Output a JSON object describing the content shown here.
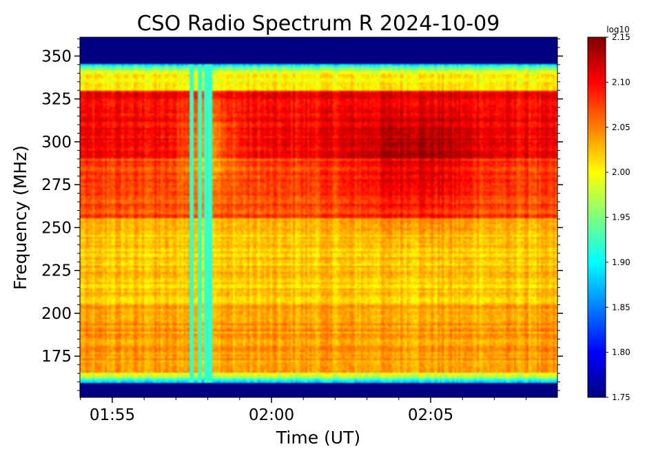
{
  "chart_data": {
    "type": "heatmap",
    "title": "CSO Radio Spectrum R 2024-10-09",
    "xlabel": "Time (UT)",
    "ylabel": "Frequency (MHz)",
    "x_range": [
      "01:53:59",
      "02:08:59"
    ],
    "x_ticks": [
      "01:55",
      "02:00",
      "02:05"
    ],
    "ylim": [
      151,
      361
    ],
    "y_ticks": [
      175,
      200,
      225,
      250,
      275,
      300,
      325,
      350
    ],
    "colorbar": {
      "label": "log10",
      "min": 1.75,
      "max": 2.15,
      "colormap": "jet",
      "ticks": [
        "1.75",
        "1.80",
        "1.85",
        "1.90",
        "1.95",
        "2.00",
        "2.05",
        "2.10",
        "2.15"
      ]
    },
    "description_levels": {
      "band_edges_value": 1.75,
      "band_limits_mhz": [
        160,
        345
      ],
      "emission_bands_mhz": [
        {
          "range": [
            290,
            330
          ],
          "value": 2.1
        },
        {
          "range": [
            255,
            290
          ],
          "value": 2.07
        },
        {
          "range": [
            205,
            255
          ],
          "value": 2.02
        },
        {
          "range": [
            165,
            205
          ],
          "value": 2.04
        }
      ],
      "vertical_spike_times": [
        "01:57:30",
        "01:57:45",
        "01:57:55",
        "01:58:05"
      ]
    }
  }
}
